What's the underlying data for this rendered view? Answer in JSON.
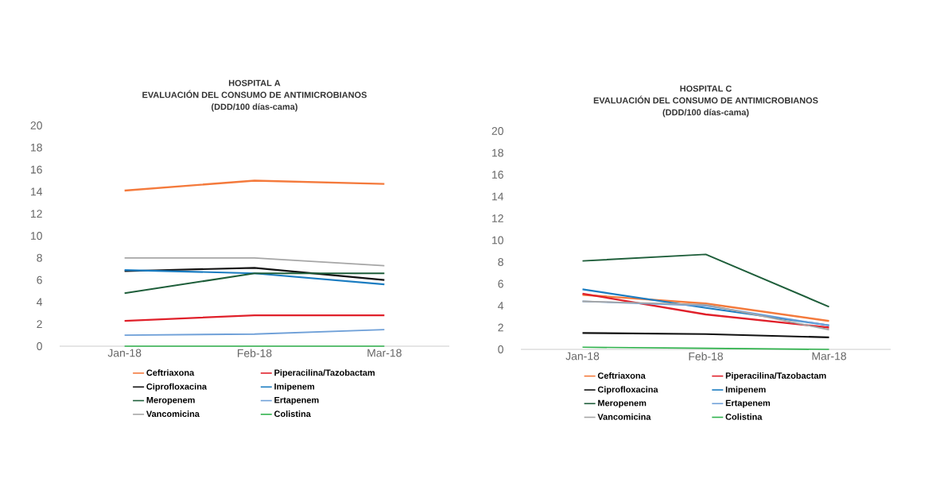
{
  "chart_data": [
    {
      "type": "line",
      "title": "HOSPITAL A",
      "subtitle": "EVALUACIÓN DEL CONSUMO DE ANTIMICROBIANOS",
      "annotations": [
        "(DDD/100 días-cama)"
      ],
      "categories": [
        "Jan-18",
        "Feb-18",
        "Mar-18"
      ],
      "ylim": [
        0,
        20
      ],
      "yticks": [
        0,
        2,
        4,
        6,
        8,
        10,
        12,
        14,
        16,
        18,
        20
      ],
      "grid": false,
      "legend": "bottom",
      "line_style": "solid",
      "marker": "none",
      "series": [
        {
          "name": "Ceftriaxona",
          "color": "#f47a3c",
          "values": [
            14.1,
            15.0,
            14.7
          ]
        },
        {
          "name": "Piperacilina/Tazobactam",
          "color": "#e0202a",
          "values": [
            2.3,
            2.8,
            2.8
          ]
        },
        {
          "name": "Ciprofloxacina",
          "color": "#111111",
          "values": [
            6.8,
            7.1,
            6.0
          ]
        },
        {
          "name": "Imipenem",
          "color": "#1a7cc1",
          "values": [
            6.9,
            6.6,
            5.6
          ]
        },
        {
          "name": "Meropenem",
          "color": "#1e5e3a",
          "values": [
            4.8,
            6.6,
            6.6
          ]
        },
        {
          "name": "Ertapenem",
          "color": "#6fa0d8",
          "values": [
            1.0,
            1.1,
            1.5
          ]
        },
        {
          "name": "Vancomicina",
          "color": "#a6a6a6",
          "values": [
            8.0,
            8.0,
            7.3
          ]
        },
        {
          "name": "Colistina",
          "color": "#2fb24c",
          "values": [
            0.0,
            0.0,
            0.0
          ]
        }
      ]
    },
    {
      "type": "line",
      "title": "HOSPITAL C",
      "subtitle": "EVALUACIÓN DEL CONSUMO DE ANTIMICROBIANOS",
      "annotations": [
        "(DDD/100 días-cama)"
      ],
      "categories": [
        "Jan-18",
        "Feb-18",
        "Mar-18"
      ],
      "ylim": [
        0,
        20
      ],
      "yticks": [
        0,
        2,
        4,
        6,
        8,
        10,
        12,
        14,
        16,
        18,
        20
      ],
      "grid": false,
      "legend": "bottom",
      "line_style": "solid",
      "marker": "none",
      "series": [
        {
          "name": "Ceftriaxona",
          "color": "#f47a3c",
          "values": [
            5.0,
            4.2,
            2.6
          ]
        },
        {
          "name": "Piperacilina/Tazobactam",
          "color": "#e0202a",
          "values": [
            5.1,
            3.2,
            2.0
          ]
        },
        {
          "name": "Ciprofloxacina",
          "color": "#111111",
          "values": [
            1.5,
            1.4,
            1.1
          ]
        },
        {
          "name": "Imipenem",
          "color": "#1a7cc1",
          "values": [
            5.5,
            3.8,
            2.2
          ]
        },
        {
          "name": "Meropenem",
          "color": "#1e5e3a",
          "values": [
            8.1,
            8.7,
            3.9
          ]
        },
        {
          "name": "Ertapenem",
          "color": "#6fa0d8",
          "values": [
            4.4,
            4.0,
            2.2
          ]
        },
        {
          "name": "Vancomicina",
          "color": "#a6a6a6",
          "values": [
            4.4,
            4.1,
            1.8
          ]
        },
        {
          "name": "Colistina",
          "color": "#2fb24c",
          "values": [
            0.2,
            0.1,
            0.0
          ]
        }
      ]
    }
  ]
}
